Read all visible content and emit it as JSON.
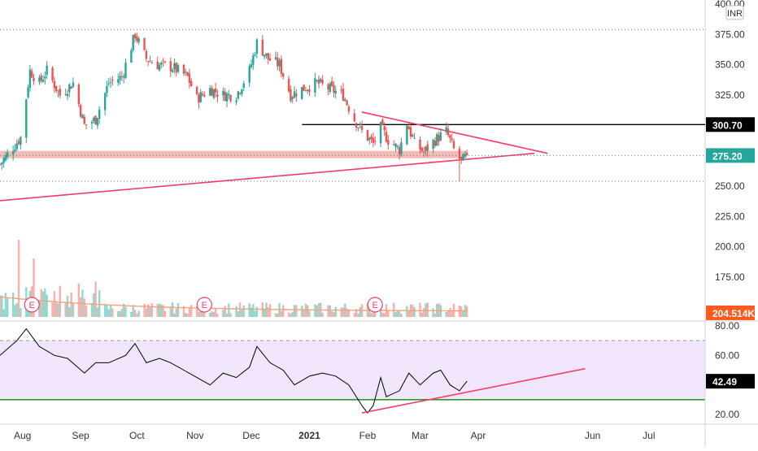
{
  "currency": "INR",
  "colors": {
    "up": "#26a69a",
    "down": "#ef5350",
    "trendline": "#f23d6a",
    "zone": "#f5a9a4",
    "level": "#000000",
    "rsi_line": "#000000",
    "rsi_band": "#f1e6fb",
    "rsi_green": "#2a9b2a",
    "volume_ma": "#f4a37a",
    "axis_text": "#333333",
    "last_price_label": "#26a69a",
    "volume_label": "#ff5a1f"
  },
  "price_axis": {
    "ticks": [
      "250.00",
      "275.00",
      "300.00",
      "325.00",
      "350.00",
      "375.00",
      "400.00"
    ],
    "extra_ticks": [
      "175.00",
      "200.00",
      "225.00"
    ]
  },
  "rsi_axis": {
    "ticks": [
      "20.00",
      "40.00",
      "60.00",
      "80.00"
    ]
  },
  "time_axis": {
    "labels": [
      "Aug",
      "Sep",
      "Oct",
      "Nov",
      "Dec",
      "2021",
      "Feb",
      "Mar",
      "Apr",
      "Jun",
      "Jul"
    ]
  },
  "labels": {
    "level": "300.70",
    "last_price": "275.20",
    "volume": "204.514K",
    "rsi": "42.49"
  },
  "earnings_markers": [
    "E",
    "E",
    "E"
  ],
  "chart_data": {
    "type": "candlestick",
    "price_series": {
      "points": [
        [
          "2020-07-20",
          268
        ],
        [
          "2020-07-31",
          290
        ],
        [
          "2020-08-05",
          345
        ],
        [
          "2020-08-10",
          335
        ],
        [
          "2020-08-14",
          345
        ],
        [
          "2020-08-21",
          325
        ],
        [
          "2020-08-28",
          335
        ],
        [
          "2020-09-03",
          300
        ],
        [
          "2020-09-09",
          305
        ],
        [
          "2020-09-16",
          335
        ],
        [
          "2020-09-23",
          340
        ],
        [
          "2020-09-30",
          375
        ],
        [
          "2020-10-06",
          355
        ],
        [
          "2020-10-12",
          350
        ],
        [
          "2020-10-20",
          348
        ],
        [
          "2020-10-28",
          340
        ],
        [
          "2020-11-02",
          322
        ],
        [
          "2020-11-09",
          330
        ],
        [
          "2020-11-16",
          325
        ],
        [
          "2020-11-23",
          325
        ],
        [
          "2020-11-30",
          345
        ],
        [
          "2020-12-04",
          368
        ],
        [
          "2020-12-10",
          355
        ],
        [
          "2020-12-16",
          350
        ],
        [
          "2020-12-22",
          325
        ],
        [
          "2020-12-28",
          330
        ],
        [
          "2021-01-05",
          335
        ],
        [
          "2021-01-12",
          330
        ],
        [
          "2021-01-19",
          325
        ],
        [
          "2021-01-25",
          305
        ],
        [
          "2021-01-29",
          295
        ],
        [
          "2021-02-04",
          285
        ],
        [
          "2021-02-08",
          298
        ],
        [
          "2021-02-12",
          288
        ],
        [
          "2021-02-18",
          280
        ],
        [
          "2021-02-22",
          302
        ],
        [
          "2021-02-26",
          285
        ],
        [
          "2021-03-03",
          278
        ],
        [
          "2021-03-09",
          288
        ],
        [
          "2021-03-15",
          295
        ],
        [
          "2021-03-19",
          280
        ],
        [
          "2021-03-23",
          270
        ],
        [
          "2021-03-26",
          275.2
        ]
      ],
      "notable_low": [
        "2021-03-22",
        254
      ],
      "last": 275.2
    },
    "rsi_series": {
      "points": [
        [
          "2020-07-20",
          60
        ],
        [
          "2020-07-29",
          70
        ],
        [
          "2020-08-03",
          78
        ],
        [
          "2020-08-10",
          66
        ],
        [
          "2020-08-18",
          60
        ],
        [
          "2020-08-25",
          58
        ],
        [
          "2020-09-03",
          48
        ],
        [
          "2020-09-09",
          55
        ],
        [
          "2020-09-16",
          55
        ],
        [
          "2020-09-25",
          60
        ],
        [
          "2020-09-30",
          68
        ],
        [
          "2020-10-06",
          55
        ],
        [
          "2020-10-13",
          58
        ],
        [
          "2020-10-19",
          55
        ],
        [
          "2020-10-26",
          50
        ],
        [
          "2020-11-02",
          45
        ],
        [
          "2020-11-09",
          40
        ],
        [
          "2020-11-16",
          48
        ],
        [
          "2020-11-23",
          45
        ],
        [
          "2020-11-30",
          52
        ],
        [
          "2020-12-04",
          66
        ],
        [
          "2020-12-11",
          55
        ],
        [
          "2020-12-18",
          50
        ],
        [
          "2020-12-24",
          40
        ],
        [
          "2021-01-01",
          46
        ],
        [
          "2021-01-08",
          48
        ],
        [
          "2021-01-15",
          46
        ],
        [
          "2021-01-22",
          40
        ],
        [
          "2021-01-29",
          26
        ],
        [
          "2021-02-01",
          21
        ],
        [
          "2021-02-04",
          26
        ],
        [
          "2021-02-08",
          45
        ],
        [
          "2021-02-11",
          32
        ],
        [
          "2021-02-18",
          36
        ],
        [
          "2021-02-23",
          48
        ],
        [
          "2021-03-01",
          40
        ],
        [
          "2021-03-08",
          48
        ],
        [
          "2021-03-12",
          50
        ],
        [
          "2021-03-17",
          40
        ],
        [
          "2021-03-22",
          36
        ],
        [
          "2021-03-26",
          42.49
        ]
      ],
      "last": 42.49
    },
    "volume_series": {
      "last": "204.514K",
      "notes": "Volume bars plotted in lower pane; no volume axis values printed except last"
    },
    "levels": [
      {
        "kind": "horizontal",
        "value": 300.7,
        "from": "2020-12-28",
        "to": "2021-07-31"
      },
      {
        "kind": "zone",
        "low": 273,
        "high": 279,
        "from": "2020-07-20",
        "to": "2021-03-26"
      }
    ],
    "trendlines": [
      {
        "from": [
          "2020-07-20",
          238
        ],
        "to": [
          "2021-05-01",
          277
        ]
      },
      {
        "from": [
          "2021-01-29",
          311
        ],
        "to": [
          "2021-05-08",
          277
        ]
      }
    ],
    "rsi_trendline": {
      "from": [
        "2021-01-29",
        21
      ],
      "to": [
        "2021-05-28",
        51
      ]
    },
    "rsi_reference": {
      "value": 30
    },
    "ylim_price": [
      250,
      400
    ],
    "ylim_rsi": [
      20,
      80
    ],
    "xlim": [
      "2020-07-20",
      "2021-07-31"
    ],
    "earnings_dates": [
      "2020-08-06",
      "2020-11-06",
      "2021-02-05"
    ]
  }
}
